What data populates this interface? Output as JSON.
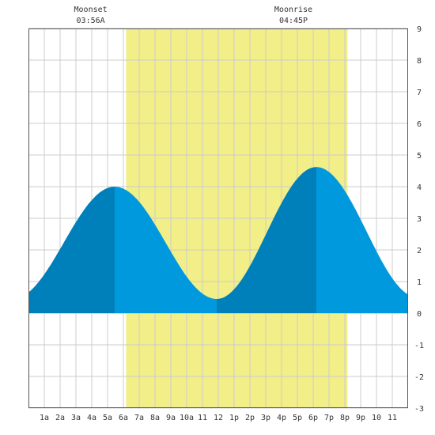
{
  "chart_data": {
    "type": "area",
    "title": "",
    "xlabel": "",
    "ylabel": "",
    "xlim": [
      0,
      24
    ],
    "ylim": [
      -3,
      9
    ],
    "grid": true,
    "x_ticks": [
      {
        "x": 1,
        "label": "1a"
      },
      {
        "x": 2,
        "label": "2a"
      },
      {
        "x": 3,
        "label": "3a"
      },
      {
        "x": 4,
        "label": "4a"
      },
      {
        "x": 5,
        "label": "5a"
      },
      {
        "x": 6,
        "label": "6a"
      },
      {
        "x": 7,
        "label": "7a"
      },
      {
        "x": 8,
        "label": "8a"
      },
      {
        "x": 9,
        "label": "9a"
      },
      {
        "x": 10,
        "label": "10a"
      },
      {
        "x": 11,
        "label": "11"
      },
      {
        "x": 12,
        "label": "12"
      },
      {
        "x": 13,
        "label": "1p"
      },
      {
        "x": 14,
        "label": "2p"
      },
      {
        "x": 15,
        "label": "3p"
      },
      {
        "x": 16,
        "label": "4p"
      },
      {
        "x": 17,
        "label": "5p"
      },
      {
        "x": 18,
        "label": "6p"
      },
      {
        "x": 19,
        "label": "7p"
      },
      {
        "x": 20,
        "label": "8p"
      },
      {
        "x": 21,
        "label": "9p"
      },
      {
        "x": 22,
        "label": "10"
      },
      {
        "x": 23,
        "label": "11"
      }
    ],
    "y_ticks": [
      -3,
      -2,
      -1,
      0,
      1,
      2,
      3,
      4,
      5,
      6,
      7,
      8,
      9
    ],
    "daylight": {
      "start": 6.17,
      "end": 20.17
    },
    "moon_events": [
      {
        "label": "Moonset",
        "time": "03:56A",
        "x": 3.93
      },
      {
        "label": "Moonrise",
        "time": "04:45P",
        "x": 16.75
      }
    ],
    "tide_extremes": [
      {
        "x": 5.45,
        "y": 4.0
      },
      {
        "x": 11.9,
        "y": 0.45
      },
      {
        "x": 18.2,
        "y": 4.62
      },
      {
        "x": 24.6,
        "y": 0.5
      }
    ],
    "series": [
      {
        "values": [
          {
            "x": 0,
            "y": 0.75
          },
          {
            "x": 1,
            "y": 1.05
          },
          {
            "x": 2,
            "y": 1.65
          },
          {
            "x": 3,
            "y": 2.45
          },
          {
            "x": 4,
            "y": 3.25
          },
          {
            "x": 5,
            "y": 3.85
          },
          {
            "x": 5.45,
            "y": 4.0
          },
          {
            "x": 6,
            "y": 3.9
          },
          {
            "x": 7,
            "y": 3.4
          },
          {
            "x": 8,
            "y": 2.65
          },
          {
            "x": 9,
            "y": 1.8
          },
          {
            "x": 10,
            "y": 1.05
          },
          {
            "x": 11,
            "y": 0.6
          },
          {
            "x": 11.9,
            "y": 0.45
          },
          {
            "x": 13,
            "y": 0.8
          },
          {
            "x": 14,
            "y": 1.55
          },
          {
            "x": 15,
            "y": 2.6
          },
          {
            "x": 16,
            "y": 3.6
          },
          {
            "x": 17,
            "y": 4.3
          },
          {
            "x": 18.2,
            "y": 4.62
          },
          {
            "x": 19,
            "y": 4.4
          },
          {
            "x": 20,
            "y": 3.75
          },
          {
            "x": 21,
            "y": 2.75
          },
          {
            "x": 22,
            "y": 1.75
          },
          {
            "x": 23,
            "y": 1.0
          },
          {
            "x": 24,
            "y": 0.7
          }
        ]
      }
    ],
    "colors": {
      "falling": "#0099dd",
      "rising": "#0080bb",
      "daylight": "#f2ee88",
      "grid": "#cccccc",
      "frame": "#555555"
    }
  }
}
